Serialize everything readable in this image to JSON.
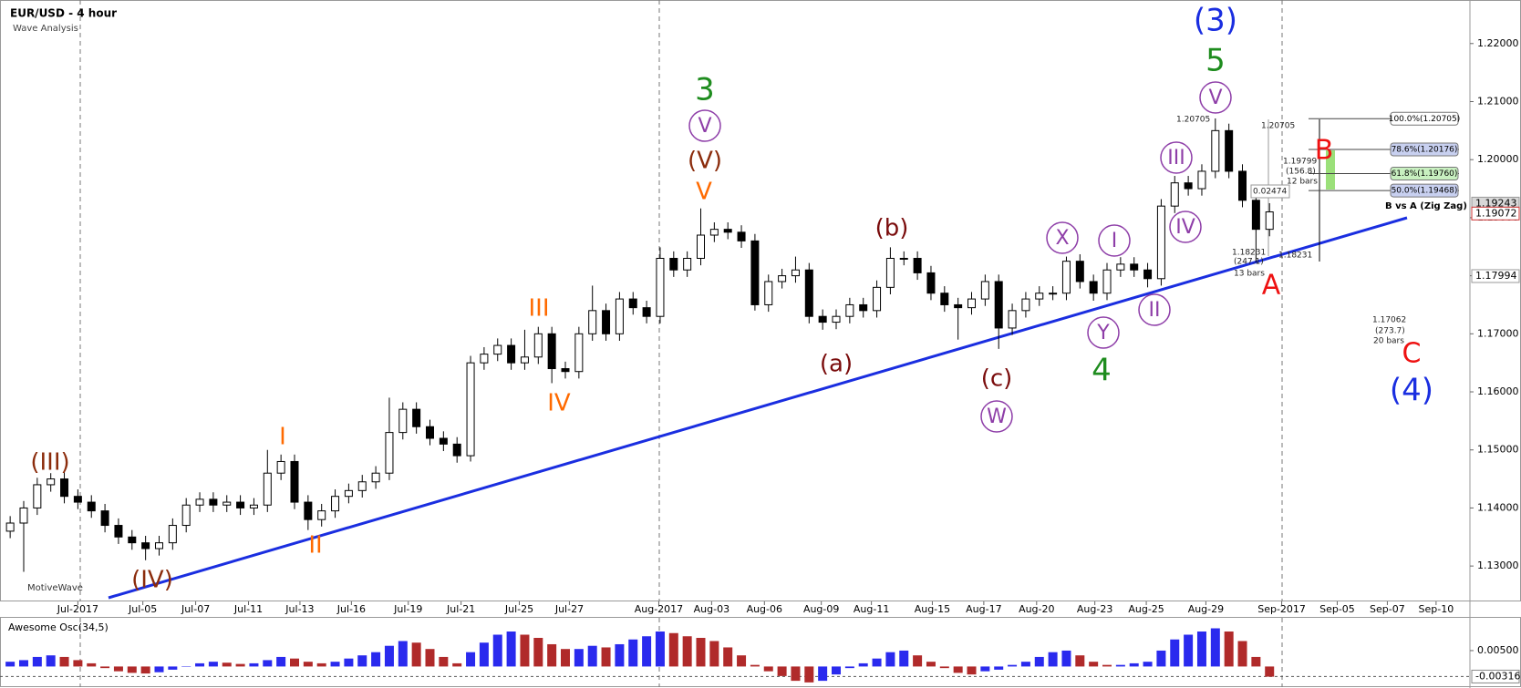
{
  "chart_data": [
    {
      "type": "candlestick",
      "title": "EUR/USD - 4 hour",
      "subtitle": "Wave Analysis",
      "watermark": "MotiveWave",
      "xlim": [
        -0.75,
        107.8
      ],
      "ylim": [
        1.1239,
        1.2275
      ],
      "xticks": [
        {
          "value": 5.0,
          "label": "Jul-2017"
        },
        {
          "value": 9.8,
          "label": "Jul-05"
        },
        {
          "value": 13.7,
          "label": "Jul-07"
        },
        {
          "value": 17.6,
          "label": "Jul-11"
        },
        {
          "value": 21.4,
          "label": "Jul-13"
        },
        {
          "value": 25.2,
          "label": "Jul-16"
        },
        {
          "value": 29.4,
          "label": "Jul-19"
        },
        {
          "value": 33.3,
          "label": "Jul-21"
        },
        {
          "value": 37.6,
          "label": "Jul-25"
        },
        {
          "value": 41.3,
          "label": "Jul-27"
        },
        {
          "value": 47.9,
          "label": "Aug-2017"
        },
        {
          "value": 51.8,
          "label": "Aug-03"
        },
        {
          "value": 55.7,
          "label": "Aug-06"
        },
        {
          "value": 59.9,
          "label": "Aug-09"
        },
        {
          "value": 63.6,
          "label": "Aug-11"
        },
        {
          "value": 68.1,
          "label": "Aug-15"
        },
        {
          "value": 71.9,
          "label": "Aug-17"
        },
        {
          "value": 75.8,
          "label": "Aug-20"
        },
        {
          "value": 80.1,
          "label": "Aug-23"
        },
        {
          "value": 83.9,
          "label": "Aug-25"
        },
        {
          "value": 88.3,
          "label": "Aug-29"
        },
        {
          "value": 93.9,
          "label": "Sep-2017"
        },
        {
          "value": 98.0,
          "label": "Sep-05"
        },
        {
          "value": 101.7,
          "label": "Sep-07"
        },
        {
          "value": 105.3,
          "label": "Sep-10"
        }
      ],
      "yticks": [
        {
          "value": 1.13,
          "label": "1.13000"
        },
        {
          "value": 1.14,
          "label": "1.14000"
        },
        {
          "value": 1.15,
          "label": "1.15000"
        },
        {
          "value": 1.16,
          "label": "1.16000"
        },
        {
          "value": 1.17,
          "label": "1.17000"
        },
        {
          "value": 1.18,
          "label": "1.18000"
        },
        {
          "value": 1.19,
          "label": "1.19000"
        },
        {
          "value": 1.2,
          "label": "1.20000"
        },
        {
          "value": 1.21,
          "label": "1.21000"
        },
        {
          "value": 1.22,
          "label": "1.22000"
        }
      ],
      "open": [
        1.136,
        1.1374,
        1.14,
        1.144,
        1.145,
        1.142,
        1.141,
        1.1395,
        1.137,
        1.135,
        1.134,
        1.133,
        1.134,
        1.137,
        1.1405,
        1.1415,
        1.1405,
        1.141,
        1.14,
        1.1405,
        1.146,
        1.148,
        1.141,
        1.138,
        1.1395,
        1.142,
        1.143,
        1.1445,
        1.146,
        1.153,
        1.157,
        1.154,
        1.152,
        1.151,
        1.149,
        1.165,
        1.1665,
        1.168,
        1.165,
        1.166,
        1.17,
        1.164,
        1.1635,
        1.17,
        1.174,
        1.17,
        1.176,
        1.1745,
        1.173,
        1.183,
        1.181,
        1.183,
        1.187,
        1.188,
        1.1875,
        1.186,
        1.175,
        1.179,
        1.18,
        1.181,
        1.173,
        1.172,
        1.173,
        1.175,
        1.174,
        1.178,
        1.183,
        1.183,
        1.1805,
        1.177,
        1.175,
        1.1745,
        1.176,
        1.179,
        1.171,
        1.174,
        1.176,
        1.177,
        1.177,
        1.1825,
        1.179,
        1.177,
        1.181,
        1.182,
        1.181,
        1.1795,
        1.192,
        1.196,
        1.195,
        1.198,
        1.205,
        1.198,
        1.193,
        1.188
      ],
      "high": [
        1.1386,
        1.1412,
        1.1452,
        1.146,
        1.1462,
        1.1432,
        1.1422,
        1.1407,
        1.1382,
        1.1362,
        1.1352,
        1.1352,
        1.1382,
        1.1417,
        1.1427,
        1.1427,
        1.1422,
        1.1422,
        1.1417,
        1.15,
        1.1492,
        1.1492,
        1.1422,
        1.1407,
        1.1432,
        1.1442,
        1.1457,
        1.1472,
        1.159,
        1.1582,
        1.1582,
        1.1552,
        1.1532,
        1.1522,
        1.1662,
        1.1677,
        1.1692,
        1.1692,
        1.1707,
        1.1712,
        1.1712,
        1.1652,
        1.1712,
        1.1783,
        1.1752,
        1.1772,
        1.1772,
        1.1757,
        1.1849,
        1.1842,
        1.1842,
        1.1916,
        1.1892,
        1.1892,
        1.1887,
        1.1872,
        1.1802,
        1.1812,
        1.1833,
        1.1822,
        1.1742,
        1.1742,
        1.1762,
        1.1762,
        1.1792,
        1.1849,
        1.1842,
        1.1842,
        1.1817,
        1.1782,
        1.1762,
        1.1772,
        1.1802,
        1.1802,
        1.1752,
        1.1772,
        1.1782,
        1.1782,
        1.1833,
        1.1837,
        1.1802,
        1.1822,
        1.1832,
        1.1832,
        1.1822,
        1.1932,
        1.1972,
        1.1972,
        1.1992,
        1.2071,
        1.2062,
        1.1992,
        1.1942,
        1.1925
      ],
      "low": [
        1.1348,
        1.129,
        1.1388,
        1.1428,
        1.1408,
        1.1398,
        1.1383,
        1.1358,
        1.1338,
        1.1328,
        1.131,
        1.1318,
        1.1328,
        1.1358,
        1.1393,
        1.1393,
        1.1393,
        1.1388,
        1.1388,
        1.1393,
        1.1448,
        1.1398,
        1.1362,
        1.1368,
        1.1383,
        1.1408,
        1.1418,
        1.1433,
        1.1448,
        1.1518,
        1.1528,
        1.1508,
        1.1498,
        1.1478,
        1.148,
        1.1638,
        1.1653,
        1.1638,
        1.1638,
        1.1648,
        1.1615,
        1.1623,
        1.1623,
        1.1688,
        1.1688,
        1.1688,
        1.1733,
        1.1718,
        1.1718,
        1.1798,
        1.1798,
        1.1818,
        1.1858,
        1.1863,
        1.1848,
        1.174,
        1.1738,
        1.1778,
        1.1788,
        1.1718,
        1.1707,
        1.1708,
        1.1718,
        1.1728,
        1.1728,
        1.1768,
        1.1818,
        1.1793,
        1.1758,
        1.1738,
        1.169,
        1.1733,
        1.1748,
        1.1674,
        1.1698,
        1.1728,
        1.1748,
        1.1758,
        1.1758,
        1.1778,
        1.1757,
        1.1758,
        1.1798,
        1.1798,
        1.178,
        1.1783,
        1.1908,
        1.1938,
        1.1938,
        1.1968,
        1.1968,
        1.1918,
        1.1823,
        1.1868
      ],
      "close": [
        1.1374,
        1.14,
        1.144,
        1.145,
        1.142,
        1.141,
        1.1395,
        1.137,
        1.135,
        1.134,
        1.133,
        1.134,
        1.137,
        1.1405,
        1.1415,
        1.1405,
        1.141,
        1.14,
        1.1405,
        1.146,
        1.148,
        1.141,
        1.138,
        1.1395,
        1.142,
        1.143,
        1.1445,
        1.146,
        1.153,
        1.157,
        1.154,
        1.152,
        1.151,
        1.149,
        1.165,
        1.1665,
        1.168,
        1.165,
        1.166,
        1.17,
        1.164,
        1.1635,
        1.17,
        1.174,
        1.17,
        1.176,
        1.1745,
        1.173,
        1.183,
        1.181,
        1.183,
        1.187,
        1.188,
        1.1875,
        1.186,
        1.175,
        1.179,
        1.18,
        1.181,
        1.173,
        1.172,
        1.173,
        1.175,
        1.174,
        1.178,
        1.183,
        1.183,
        1.1805,
        1.177,
        1.175,
        1.1745,
        1.176,
        1.179,
        1.171,
        1.174,
        1.176,
        1.177,
        1.177,
        1.1825,
        1.179,
        1.177,
        1.181,
        1.182,
        1.181,
        1.1795,
        1.192,
        1.196,
        1.195,
        1.198,
        1.205,
        1.198,
        1.193,
        1.188,
        1.191
      ],
      "price_tags": [
        1.19243,
        1.19072,
        1.17994
      ],
      "fib_levels": [
        {
          "value": 1.20705,
          "label": "100.0%(1.20705)",
          "color": "#ffffff"
        },
        {
          "value": 1.20176,
          "label": "78.6%(1.20176)",
          "color": "#c8d0f0"
        },
        {
          "value": 1.1976,
          "label": "61.8%(1.19760)",
          "color": "#c8f0c0"
        },
        {
          "value": 1.19468,
          "label": "50.0%(1.19468)",
          "color": "#c8d0f0"
        }
      ],
      "fib_title": "B vs A (Zig Zag)",
      "notes": [
        "1.20705",
        "1.20705",
        "1.19799",
        "(156.8)",
        "12 bars",
        "0.02474",
        "1.18231",
        "(247.1)",
        "13 bars",
        "1.18231",
        "1.17062",
        "(273.7)",
        "20 bars"
      ],
      "annotations": [
        {
          "text": "(III)",
          "color": "#8b2c0c",
          "circled": false
        },
        {
          "text": "(IV)",
          "color": "#8b2c0c",
          "circled": false
        },
        {
          "text": "I",
          "color": "#ff6a00",
          "circled": false
        },
        {
          "text": "II",
          "color": "#ff6a00",
          "circled": false
        },
        {
          "text": "III",
          "color": "#ff6a00",
          "circled": false
        },
        {
          "text": "IV",
          "color": "#ff6a00",
          "circled": false
        },
        {
          "text": "V",
          "color": "#ff6a00",
          "circled": false
        },
        {
          "text": "(V)",
          "color": "#8b2c0c",
          "circled": false
        },
        {
          "text": "V",
          "color": "#8e3ea8",
          "circled": true
        },
        {
          "text": "3",
          "color": "#1e8c1e",
          "circled": false
        },
        {
          "text": "(a)",
          "color": "#7a0c0c",
          "circled": false
        },
        {
          "text": "(b)",
          "color": "#7a0c0c",
          "circled": false
        },
        {
          "text": "(c)",
          "color": "#7a0c0c",
          "circled": false
        },
        {
          "text": "W",
          "color": "#8e3ea8",
          "circled": true
        },
        {
          "text": "X",
          "color": "#8e3ea8",
          "circled": true
        },
        {
          "text": "Y",
          "color": "#8e3ea8",
          "circled": true
        },
        {
          "text": "4",
          "color": "#1e8c1e",
          "circled": false
        },
        {
          "text": "I",
          "color": "#8e3ea8",
          "circled": true
        },
        {
          "text": "II",
          "color": "#8e3ea8",
          "circled": true
        },
        {
          "text": "III",
          "color": "#8e3ea8",
          "circled": true
        },
        {
          "text": "IV",
          "color": "#8e3ea8",
          "circled": true
        },
        {
          "text": "V",
          "color": "#8e3ea8",
          "circled": true
        },
        {
          "text": "5",
          "color": "#1e8c1e",
          "circled": false
        },
        {
          "text": "(3)",
          "color": "#1a2ee0",
          "circled": false
        },
        {
          "text": "A",
          "color": "#ee1111",
          "circled": false
        },
        {
          "text": "B",
          "color": "#ee1111",
          "circled": false
        },
        {
          "text": "C",
          "color": "#ee1111",
          "circled": false
        },
        {
          "text": "(4)",
          "color": "#1a2ee0",
          "circled": false
        }
      ]
    },
    {
      "type": "histogram_osc",
      "title": "Awesome Osc(34,5)",
      "ylim": [
        -0.0059,
        0.0153
      ],
      "yticks": [
        {
          "value": 0.005,
          "label": "0.00500"
        }
      ],
      "current": {
        "value": -0.00316,
        "label": "-0.00316"
      },
      "up_color": "#2a2aee",
      "down_color": "#b02a2a",
      "values": [
        0.0015,
        0.002,
        0.003,
        0.0035,
        0.003,
        0.002,
        0.001,
        -0.0005,
        -0.0015,
        -0.002,
        -0.0022,
        -0.0018,
        -0.001,
        0.0,
        0.001,
        0.0015,
        0.0012,
        0.0008,
        0.001,
        0.002,
        0.003,
        0.0025,
        0.0015,
        0.001,
        0.0015,
        0.0025,
        0.0035,
        0.0045,
        0.0065,
        0.008,
        0.0075,
        0.0055,
        0.003,
        0.001,
        0.0045,
        0.0075,
        0.01,
        0.011,
        0.01,
        0.009,
        0.007,
        0.0055,
        0.0055,
        0.0065,
        0.006,
        0.007,
        0.0085,
        0.0095,
        0.011,
        0.0105,
        0.0095,
        0.009,
        0.008,
        0.006,
        0.0035,
        0.0005,
        -0.0015,
        -0.003,
        -0.0045,
        -0.005,
        -0.0045,
        -0.0025,
        -0.0005,
        0.001,
        0.0025,
        0.0045,
        0.005,
        0.0035,
        0.0015,
        -0.0005,
        -0.002,
        -0.0025,
        -0.0015,
        -0.001,
        0.0005,
        0.0015,
        0.003,
        0.0045,
        0.005,
        0.0035,
        0.0015,
        0.0005,
        0.0005,
        0.001,
        0.0015,
        0.005,
        0.0085,
        0.01,
        0.011,
        0.012,
        0.011,
        0.008,
        0.003,
        -0.0032
      ]
    }
  ]
}
